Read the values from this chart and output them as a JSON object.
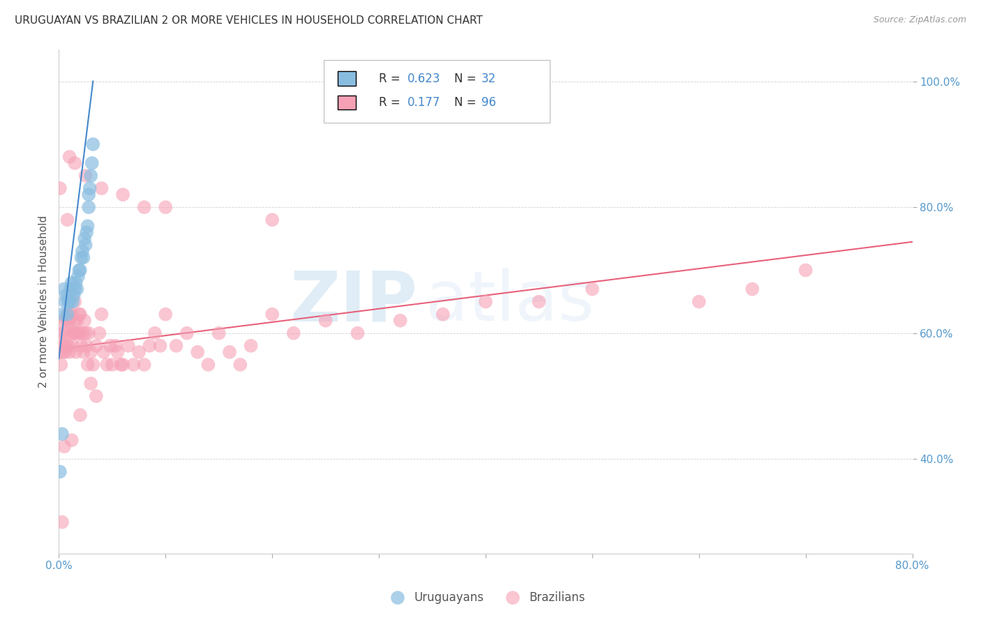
{
  "title": "URUGUAYAN VS BRAZILIAN 2 OR MORE VEHICLES IN HOUSEHOLD CORRELATION CHART",
  "source": "Source: ZipAtlas.com",
  "ylabel": "2 or more Vehicles in Household",
  "xlim": [
    0.0,
    0.8
  ],
  "ylim": [
    0.25,
    1.05
  ],
  "xtick_vals": [
    0.0,
    0.1,
    0.2,
    0.3,
    0.4,
    0.5,
    0.6,
    0.7,
    0.8
  ],
  "xtick_labels": [
    "0.0%",
    "",
    "",
    "",
    "",
    "",
    "",
    "",
    "80.0%"
  ],
  "ytick_vals": [
    0.4,
    0.6,
    0.8,
    1.0
  ],
  "ytick_labels": [
    "40.0%",
    "60.0%",
    "80.0%",
    "100.0%"
  ],
  "color_uruguayan": "#89bde0",
  "color_brazilian": "#f5a0b5",
  "color_line_uruguayan": "#4488cc",
  "color_line_brazilian": "#e8607a",
  "watermark_zip": "ZIP",
  "watermark_atlas": "atlas",
  "uruguayan_x": [
    0.001,
    0.003,
    0.004,
    0.005,
    0.006,
    0.007,
    0.008,
    0.009,
    0.01,
    0.011,
    0.012,
    0.013,
    0.014,
    0.015,
    0.016,
    0.017,
    0.018,
    0.019,
    0.02,
    0.021,
    0.022,
    0.023,
    0.024,
    0.025,
    0.026,
    0.027,
    0.028,
    0.028,
    0.029,
    0.03,
    0.031,
    0.032
  ],
  "uruguayan_y": [
    0.38,
    0.44,
    0.63,
    0.67,
    0.65,
    0.66,
    0.63,
    0.65,
    0.65,
    0.67,
    0.68,
    0.65,
    0.66,
    0.67,
    0.68,
    0.67,
    0.69,
    0.7,
    0.7,
    0.72,
    0.73,
    0.72,
    0.75,
    0.74,
    0.76,
    0.77,
    0.8,
    0.82,
    0.83,
    0.85,
    0.87,
    0.9
  ],
  "brazilian_x": [
    0.001,
    0.002,
    0.003,
    0.004,
    0.004,
    0.005,
    0.005,
    0.006,
    0.007,
    0.007,
    0.008,
    0.008,
    0.009,
    0.009,
    0.01,
    0.01,
    0.011,
    0.012,
    0.012,
    0.013,
    0.014,
    0.015,
    0.015,
    0.015,
    0.016,
    0.017,
    0.018,
    0.019,
    0.02,
    0.02,
    0.021,
    0.022,
    0.023,
    0.024,
    0.025,
    0.026,
    0.027,
    0.028,
    0.03,
    0.032,
    0.035,
    0.038,
    0.04,
    0.042,
    0.045,
    0.048,
    0.05,
    0.053,
    0.055,
    0.058,
    0.06,
    0.065,
    0.07,
    0.075,
    0.08,
    0.085,
    0.09,
    0.095,
    0.1,
    0.11,
    0.12,
    0.13,
    0.14,
    0.15,
    0.16,
    0.17,
    0.18,
    0.2,
    0.22,
    0.25,
    0.28,
    0.32,
    0.36,
    0.4,
    0.45,
    0.5,
    0.6,
    0.65,
    0.7,
    0.2,
    0.1,
    0.08,
    0.06,
    0.04,
    0.025,
    0.015,
    0.01,
    0.008,
    0.005,
    0.003,
    0.002,
    0.001,
    0.03,
    0.035,
    0.02,
    0.012
  ],
  "brazilian_y": [
    0.57,
    0.6,
    0.58,
    0.62,
    0.57,
    0.6,
    0.58,
    0.57,
    0.62,
    0.58,
    0.63,
    0.6,
    0.62,
    0.58,
    0.57,
    0.62,
    0.63,
    0.6,
    0.63,
    0.58,
    0.6,
    0.62,
    0.65,
    0.6,
    0.57,
    0.62,
    0.6,
    0.63,
    0.63,
    0.6,
    0.58,
    0.6,
    0.57,
    0.62,
    0.6,
    0.58,
    0.55,
    0.6,
    0.57,
    0.55,
    0.58,
    0.6,
    0.63,
    0.57,
    0.55,
    0.58,
    0.55,
    0.58,
    0.57,
    0.55,
    0.55,
    0.58,
    0.55,
    0.57,
    0.55,
    0.58,
    0.6,
    0.58,
    0.63,
    0.58,
    0.6,
    0.57,
    0.55,
    0.6,
    0.57,
    0.55,
    0.58,
    0.63,
    0.6,
    0.62,
    0.6,
    0.62,
    0.63,
    0.65,
    0.65,
    0.67,
    0.65,
    0.67,
    0.7,
    0.78,
    0.8,
    0.8,
    0.82,
    0.83,
    0.85,
    0.87,
    0.88,
    0.78,
    0.42,
    0.3,
    0.55,
    0.83,
    0.52,
    0.5,
    0.47,
    0.43
  ],
  "line_uru_x0": 0.0,
  "line_uru_x1": 0.032,
  "line_uru_y0": 0.56,
  "line_uru_y1": 1.0,
  "line_bra_x0": 0.0,
  "line_bra_x1": 0.8,
  "line_bra_y0": 0.575,
  "line_bra_y1": 0.745
}
